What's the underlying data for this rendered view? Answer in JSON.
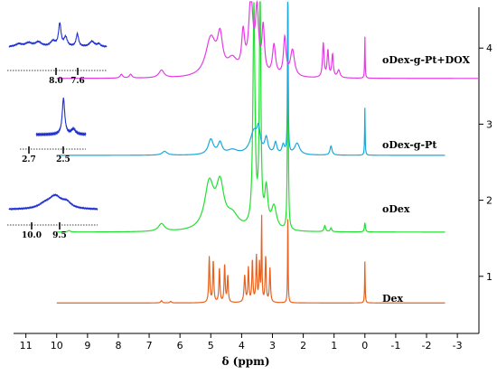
{
  "chart_data": {
    "type": "line",
    "xlabel": "δ (ppm)",
    "xlim": [
      11.4,
      -3.7
    ],
    "x_ticks": [
      "11",
      "10",
      "9",
      "8",
      "7",
      "6",
      "5",
      "4",
      "3",
      "2",
      "1",
      "0",
      "-1",
      "-2",
      "-3"
    ],
    "y_ticks": [
      "1",
      "2",
      "3",
      "4"
    ],
    "grid": false,
    "series": [
      {
        "name": "Dex",
        "color": "#e8621f",
        "baseline": 0.65,
        "peaks": [
          [
            5.05,
            0.6,
            0.02
          ],
          [
            4.92,
            0.55,
            0.02
          ],
          [
            4.72,
            0.45,
            0.02
          ],
          [
            4.55,
            0.5,
            0.02
          ],
          [
            4.45,
            0.35,
            0.02
          ],
          [
            3.9,
            0.35,
            0.025
          ],
          [
            3.78,
            0.45,
            0.02
          ],
          [
            3.65,
            0.55,
            0.02
          ],
          [
            3.52,
            0.6,
            0.02
          ],
          [
            3.42,
            0.5,
            0.02
          ],
          [
            3.35,
            1.1,
            0.012
          ],
          [
            3.22,
            0.6,
            0.02
          ],
          [
            3.08,
            0.45,
            0.02
          ],
          [
            2.5,
            1.2,
            0.01
          ],
          [
            0.0,
            0.55,
            0.01
          ],
          [
            6.3,
            0.02,
            0.03
          ],
          [
            6.6,
            0.03,
            0.03
          ]
        ]
      },
      {
        "name": "oDex",
        "color": "#21e030",
        "baseline": 1.58,
        "peaks": [
          [
            9.6,
            0.02,
            0.05
          ],
          [
            6.6,
            0.1,
            0.12
          ],
          [
            5.05,
            0.6,
            0.18
          ],
          [
            4.7,
            0.55,
            0.15
          ],
          [
            4.3,
            0.18,
            0.25
          ],
          [
            3.6,
            2.9,
            0.04
          ],
          [
            3.4,
            3.1,
            0.03
          ],
          [
            3.2,
            0.5,
            0.06
          ],
          [
            2.95,
            0.3,
            0.1
          ],
          [
            2.5,
            3.1,
            0.015
          ],
          [
            1.3,
            0.08,
            0.03
          ],
          [
            1.1,
            0.05,
            0.03
          ],
          [
            0.0,
            0.12,
            0.02
          ]
        ]
      },
      {
        "name": "oDex-g-Pt",
        "color": "#19a8dc",
        "baseline": 2.59,
        "peaks": [
          [
            6.5,
            0.05,
            0.1
          ],
          [
            5.0,
            0.2,
            0.1
          ],
          [
            4.7,
            0.15,
            0.08
          ],
          [
            4.3,
            0.06,
            0.2
          ],
          [
            3.6,
            0.3,
            0.15
          ],
          [
            3.45,
            0.25,
            0.06
          ],
          [
            3.2,
            0.2,
            0.06
          ],
          [
            2.9,
            0.15,
            0.05
          ],
          [
            2.65,
            0.12,
            0.05
          ],
          [
            2.5,
            2.4,
            0.012
          ],
          [
            2.2,
            0.15,
            0.1
          ],
          [
            1.1,
            0.12,
            0.04
          ],
          [
            0.0,
            0.63,
            0.01
          ]
        ]
      },
      {
        "name": "oDex-g-Pt+DOX",
        "color": "#e63ce6",
        "baseline": 3.6,
        "peaks": [
          [
            7.9,
            0.05,
            0.05
          ],
          [
            7.6,
            0.05,
            0.05
          ],
          [
            6.6,
            0.1,
            0.1
          ],
          [
            5.0,
            0.5,
            0.2
          ],
          [
            4.7,
            0.45,
            0.1
          ],
          [
            4.3,
            0.2,
            0.2
          ],
          [
            3.95,
            0.5,
            0.06
          ],
          [
            3.7,
            1.0,
            0.08
          ],
          [
            3.5,
            0.8,
            0.06
          ],
          [
            3.3,
            0.6,
            0.05
          ],
          [
            2.95,
            0.4,
            0.06
          ],
          [
            2.6,
            0.5,
            0.05
          ],
          [
            2.35,
            0.35,
            0.08
          ],
          [
            1.35,
            0.45,
            0.03
          ],
          [
            1.2,
            0.35,
            0.03
          ],
          [
            1.05,
            0.3,
            0.03
          ],
          [
            0.85,
            0.1,
            0.05
          ],
          [
            0.0,
            0.55,
            0.01
          ]
        ]
      }
    ],
    "insets": [
      {
        "color": "#1e2fd0",
        "tick_labels": [
          "8.0",
          "7.6"
        ]
      },
      {
        "color": "#1e2fd0",
        "tick_labels": [
          "2.7",
          "2.5"
        ]
      },
      {
        "color": "#1e2fd0",
        "tick_labels": [
          "10.0",
          "9.5"
        ]
      }
    ]
  }
}
